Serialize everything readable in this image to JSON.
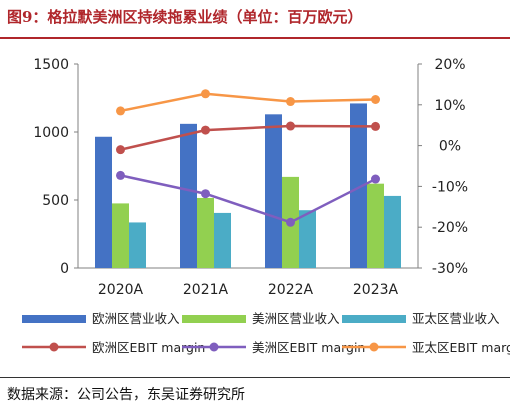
{
  "title": "图9：格拉默美洲区持续拖累业绩（单位：百万欧元）",
  "source": "数据来源：公司公告，东吴证券研究所",
  "chart_data": {
    "type": "bar",
    "categories": [
      "2020A",
      "2021A",
      "2022A",
      "2023A"
    ],
    "y_left": {
      "min": 0,
      "max": 1500,
      "ticks": [
        0,
        500,
        1000,
        1500
      ]
    },
    "y_right": {
      "min": -30,
      "max": 20,
      "ticks": [
        "-30%",
        "-20%",
        "-10%",
        "0%",
        "10%",
        "20%"
      ],
      "tick_values": [
        -30,
        -20,
        -10,
        0,
        10,
        20
      ]
    },
    "bar_series": [
      {
        "name": "欧洲区营业收入",
        "color": "#4472c4",
        "values": [
          965,
          1060,
          1130,
          1210
        ]
      },
      {
        "name": "美洲区营业收入",
        "color": "#92d050",
        "values": [
          475,
          515,
          670,
          620
        ]
      },
      {
        "name": "亚太区营业收入",
        "color": "#4bacc6",
        "values": [
          335,
          405,
          425,
          530
        ]
      }
    ],
    "line_series": [
      {
        "name": "欧洲区EBIT margin",
        "color": "#c0504d",
        "values": [
          -1.0,
          3.8,
          4.8,
          4.7
        ]
      },
      {
        "name": "美洲区EBIT margin",
        "color": "#7f5ebe",
        "values": [
          -7.3,
          -11.8,
          -18.8,
          -8.2
        ]
      },
      {
        "name": "亚太区EBIT margin",
        "color": "#f79646",
        "values": [
          8.5,
          12.7,
          10.8,
          11.3
        ]
      }
    ],
    "grid": false,
    "legend_position": "bottom"
  }
}
